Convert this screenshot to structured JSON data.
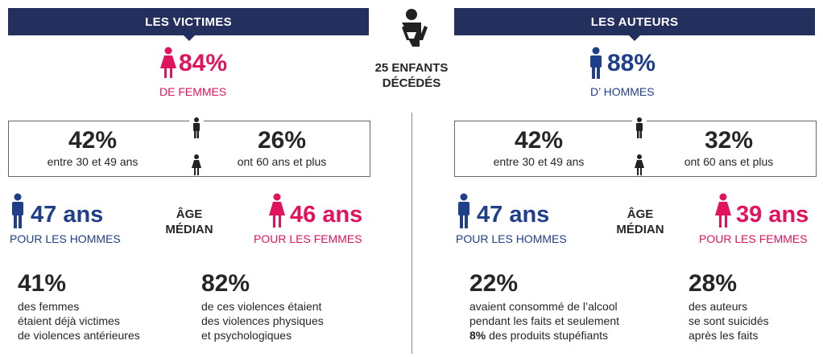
{
  "colors": {
    "navy_header": "#232f5c",
    "pink": "#e0135c",
    "navy": "#1f3f8a",
    "dark": "#262626"
  },
  "center": {
    "icon": "baby-icon",
    "line1": "25 ENFANTS",
    "line2": "DÉCÉDÉS"
  },
  "victims": {
    "header": "LES VICTIMES",
    "main_pct": "84%",
    "main_label": "DE FEMMES",
    "box_left_pct": "42%",
    "box_left_txt": "entre 30 et 49 ans",
    "box_right_pct": "26%",
    "box_right_txt": "ont 60 ans et plus",
    "age_men": "47 ans",
    "age_men_label": "POUR LES HOMMES",
    "median_1": "ÂGE",
    "median_2": "MÉDIAN",
    "age_women": "46 ans",
    "age_women_label": "POUR LES FEMMES",
    "stat1_pct": "41%",
    "stat1_l1": "des femmes",
    "stat1_l2": "étaient déjà victimes",
    "stat1_l3": "de violences antérieures",
    "stat2_pct": "82%",
    "stat2_l1": "de ces violences étaient",
    "stat2_l2": "des violences physiques",
    "stat2_l3": "et psychologiques"
  },
  "authors": {
    "header": "LES AUTEURS",
    "main_pct": "88%",
    "main_label": "D’ HOMMES",
    "box_left_pct": "42%",
    "box_left_txt": "entre 30 et 49 ans",
    "box_right_pct": "32%",
    "box_right_txt": "ont 60 ans et plus",
    "age_men": "47 ans",
    "age_men_label": "POUR LES HOMMES",
    "median_1": "ÂGE",
    "median_2": "MÉDIAN",
    "age_women": "39 ans",
    "age_women_label": "POUR LES FEMMES",
    "stat1_pct": "22%",
    "stat1_l1": "avaient consommé de l’alcool",
    "stat1_l2": "pendant les faits et seulement",
    "stat1_l3_bold": "8%",
    "stat1_l3_rest": " des produits stupéfiants",
    "stat2_pct": "28%",
    "stat2_l1": "des auteurs",
    "stat2_l2": "se sont suicidés",
    "stat2_l3": "après les faits"
  }
}
